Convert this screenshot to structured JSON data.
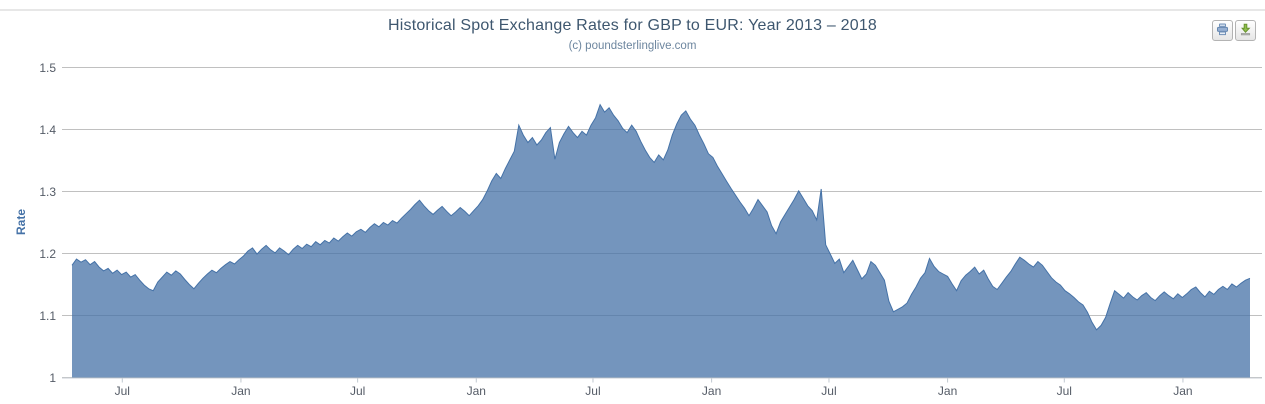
{
  "header": {
    "title": "Historical Spot Exchange Rates for GBP to EUR: Year 2013 – 2018",
    "subtitle": "(c) poundsterlinglive.com"
  },
  "toolbar": {
    "buttons": [
      {
        "id": "print",
        "icon": "printer-icon"
      },
      {
        "id": "download",
        "icon": "download-icon"
      }
    ]
  },
  "chart_data": {
    "type": "area",
    "title": "Historical Spot Exchange Rates for GBP to EUR: Year 2013 – 2018",
    "subtitle": "(c) poundsterlinglive.com",
    "xlabel": "",
    "ylabel": "Rate",
    "ylim": [
      1,
      1.5
    ],
    "yticks": [
      1,
      1.1,
      1.2,
      1.3,
      1.4,
      1.5
    ],
    "ytick_labels": [
      "1",
      "1.1",
      "1.2",
      "1.3",
      "1.4",
      "1.5"
    ],
    "grid": true,
    "legend": false,
    "xticks": [
      {
        "date": "2013-07-01",
        "label": "Jul"
      },
      {
        "date": "2014-01-01",
        "label": "Jan"
      },
      {
        "date": "2014-07-01",
        "label": "Jul"
      },
      {
        "date": "2015-01-01",
        "label": "Jan"
      },
      {
        "date": "2015-07-01",
        "label": "Jul"
      },
      {
        "date": "2016-01-01",
        "label": "Jan"
      },
      {
        "date": "2016-07-01",
        "label": "Jul"
      },
      {
        "date": "2017-01-01",
        "label": "Jan"
      },
      {
        "date": "2017-07-01",
        "label": "Jul"
      },
      {
        "date": "2018-01-01",
        "label": "Jan"
      }
    ],
    "colors": {
      "line": "#4572A7",
      "fill": "rgba(69,114,167,0.75)",
      "grid": "#C0C0C0",
      "axis_line": "#C9CED4",
      "tick_mark": "#C0C8D0",
      "title": "#3E576F",
      "subtitle": "#6D869F",
      "axis_label": "#545b66",
      "y_title": "#4572A7"
    },
    "series": [
      {
        "name": "GBP to EUR",
        "start_date": "2013-04-14",
        "interval_days": 7,
        "values": [
          1.181,
          1.191,
          1.186,
          1.19,
          1.182,
          1.187,
          1.178,
          1.172,
          1.176,
          1.168,
          1.173,
          1.166,
          1.17,
          1.162,
          1.166,
          1.157,
          1.149,
          1.143,
          1.14,
          1.154,
          1.162,
          1.17,
          1.165,
          1.172,
          1.167,
          1.158,
          1.15,
          1.143,
          1.152,
          1.16,
          1.167,
          1.173,
          1.169,
          1.176,
          1.182,
          1.187,
          1.183,
          1.19,
          1.196,
          1.204,
          1.209,
          1.199,
          1.207,
          1.213,
          1.206,
          1.201,
          1.209,
          1.204,
          1.198,
          1.207,
          1.213,
          1.208,
          1.215,
          1.211,
          1.219,
          1.214,
          1.221,
          1.217,
          1.225,
          1.22,
          1.227,
          1.233,
          1.228,
          1.235,
          1.239,
          1.234,
          1.242,
          1.248,
          1.243,
          1.25,
          1.246,
          1.253,
          1.249,
          1.257,
          1.264,
          1.271,
          1.279,
          1.286,
          1.277,
          1.269,
          1.263,
          1.27,
          1.276,
          1.268,
          1.261,
          1.267,
          1.274,
          1.268,
          1.261,
          1.269,
          1.277,
          1.287,
          1.301,
          1.317,
          1.329,
          1.321,
          1.337,
          1.351,
          1.365,
          1.407,
          1.391,
          1.379,
          1.387,
          1.375,
          1.383,
          1.395,
          1.403,
          1.352,
          1.379,
          1.393,
          1.405,
          1.395,
          1.387,
          1.397,
          1.391,
          1.407,
          1.419,
          1.44,
          1.428,
          1.435,
          1.423,
          1.414,
          1.402,
          1.395,
          1.407,
          1.397,
          1.381,
          1.367,
          1.355,
          1.347,
          1.359,
          1.351,
          1.367,
          1.391,
          1.409,
          1.423,
          1.43,
          1.417,
          1.407,
          1.391,
          1.377,
          1.361,
          1.355,
          1.341,
          1.329,
          1.317,
          1.305,
          1.294,
          1.283,
          1.273,
          1.261,
          1.273,
          1.287,
          1.277,
          1.267,
          1.245,
          1.232,
          1.251,
          1.263,
          1.275,
          1.287,
          1.301,
          1.289,
          1.277,
          1.269,
          1.254,
          1.304,
          1.214,
          1.199,
          1.184,
          1.191,
          1.169,
          1.179,
          1.189,
          1.174,
          1.159,
          1.167,
          1.187,
          1.181,
          1.169,
          1.157,
          1.123,
          1.106,
          1.11,
          1.114,
          1.12,
          1.134,
          1.146,
          1.16,
          1.169,
          1.192,
          1.179,
          1.171,
          1.167,
          1.163,
          1.151,
          1.14,
          1.156,
          1.165,
          1.171,
          1.178,
          1.167,
          1.173,
          1.159,
          1.147,
          1.142,
          1.152,
          1.162,
          1.171,
          1.183,
          1.194,
          1.189,
          1.183,
          1.178,
          1.187,
          1.181,
          1.171,
          1.161,
          1.154,
          1.149,
          1.14,
          1.135,
          1.129,
          1.122,
          1.117,
          1.105,
          1.089,
          1.077,
          1.084,
          1.097,
          1.119,
          1.14,
          1.134,
          1.128,
          1.137,
          1.13,
          1.125,
          1.132,
          1.137,
          1.129,
          1.124,
          1.132,
          1.138,
          1.132,
          1.127,
          1.135,
          1.129,
          1.135,
          1.142,
          1.146,
          1.137,
          1.13,
          1.139,
          1.134,
          1.142,
          1.147,
          1.142,
          1.151,
          1.146,
          1.152,
          1.157,
          1.16
        ]
      }
    ]
  }
}
